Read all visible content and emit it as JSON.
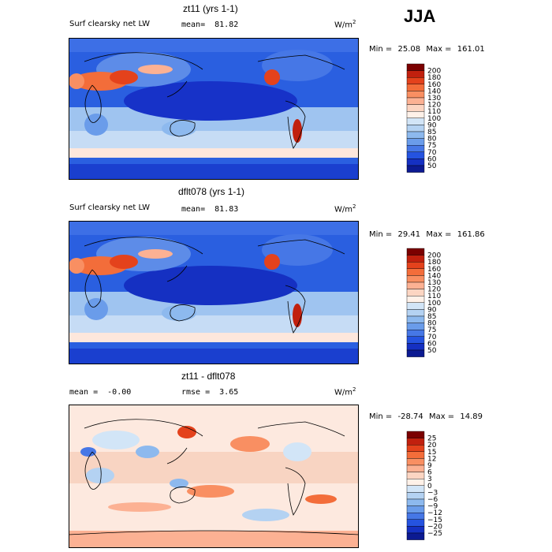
{
  "season": "JJA",
  "chart_data": [
    {
      "type": "heatmap",
      "title": "zt11 (yrs 1-1)",
      "variable": "Surf clearsky net LW",
      "units_base": "W/m",
      "units_exp": "2",
      "stat_label": "mean=",
      "stat_value": "81.82",
      "min_label": "Min =",
      "min_value": "25.08",
      "max_label": "Max =",
      "max_value": "161.01",
      "levels": [
        "200",
        "180",
        "160",
        "140",
        "130",
        "120",
        "110",
        "100",
        "90",
        "85",
        "80",
        "75",
        "70",
        "60",
        "50"
      ],
      "colors": [
        "#7b0000",
        "#c1200e",
        "#e4421c",
        "#f36d3a",
        "#f98f62",
        "#fcb193",
        "#fcd5c2",
        "#fff1e8",
        "#d2e5f7",
        "#b4d2f2",
        "#8db9ee",
        "#6a9cea",
        "#4677e6",
        "#2553e0",
        "#1530c2",
        "#0c1a92"
      ]
    },
    {
      "type": "heatmap",
      "title": "dflt078 (yrs 1-1)",
      "variable": "Surf clearsky net LW",
      "units_base": "W/m",
      "units_exp": "2",
      "stat_label": "mean=",
      "stat_value": "81.83",
      "min_label": "Min =",
      "min_value": "29.41",
      "max_label": "Max =",
      "max_value": "161.86",
      "levels": [
        "200",
        "180",
        "160",
        "140",
        "130",
        "120",
        "110",
        "100",
        "90",
        "85",
        "80",
        "75",
        "70",
        "60",
        "50"
      ],
      "colors": [
        "#7b0000",
        "#c1200e",
        "#e4421c",
        "#f36d3a",
        "#f98f62",
        "#fcb193",
        "#fcd5c2",
        "#fff1e8",
        "#d2e5f7",
        "#b4d2f2",
        "#8db9ee",
        "#6a9cea",
        "#4677e6",
        "#2553e0",
        "#1530c2",
        "#0c1a92"
      ]
    },
    {
      "type": "heatmap",
      "title": "zt11 - dflt078",
      "units_base": "W/m",
      "units_exp": "2",
      "stat_label": "mean =",
      "stat_value": "-0.00",
      "rmse_label": "rmse =",
      "rmse_value": "3.65",
      "min_label": "Min =",
      "min_value": "-28.74",
      "max_label": "Max =",
      "max_value": "14.89",
      "levels": [
        "25",
        "20",
        "15",
        "12",
        "9",
        "6",
        "3",
        "0",
        "−3",
        "−6",
        "−9",
        "−12",
        "−15",
        "−20",
        "−25"
      ],
      "colors": [
        "#7b0000",
        "#c1200e",
        "#e4421c",
        "#f36d3a",
        "#f98f62",
        "#fcb193",
        "#fcd5c2",
        "#fff1e8",
        "#d2e5f7",
        "#b4d2f2",
        "#8db9ee",
        "#6a9cea",
        "#4677e6",
        "#2553e0",
        "#1530c2",
        "#0c1a92"
      ]
    }
  ]
}
